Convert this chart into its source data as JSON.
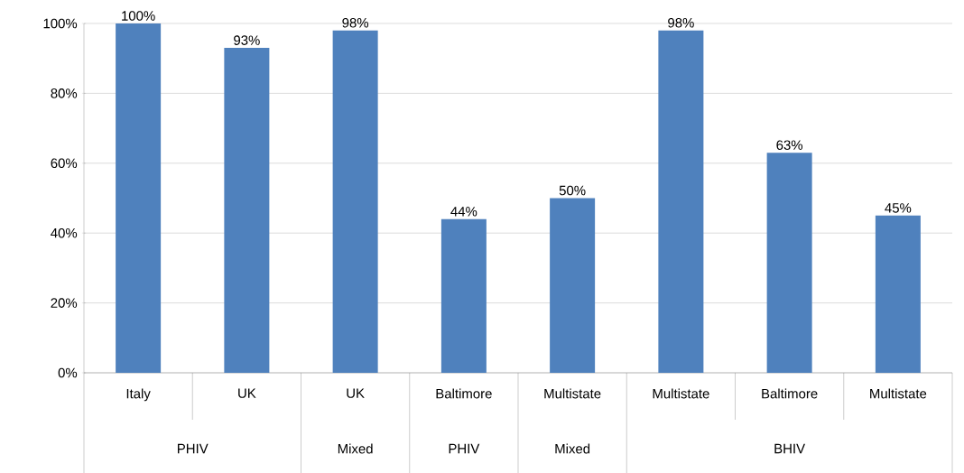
{
  "chart_data": {
    "type": "bar",
    "categories": [
      "Italy",
      "UK",
      "UK",
      "Baltimore",
      "Multistate",
      "Multistate",
      "Baltimore",
      "Multistate"
    ],
    "values": [
      100,
      93,
      98,
      44,
      50,
      98,
      63,
      45
    ],
    "value_labels": [
      "100%",
      "93%",
      "98%",
      "44%",
      "50%",
      "98%",
      "63%",
      "45%"
    ],
    "color": "#4f81bd",
    "ylim": [
      0,
      100
    ],
    "yticks": [
      {
        "value": 0,
        "label": "0%"
      },
      {
        "value": 20,
        "label": "20%"
      },
      {
        "value": 40,
        "label": "40%"
      },
      {
        "value": 60,
        "label": "60%"
      },
      {
        "value": 80,
        "label": "80%"
      },
      {
        "value": 100,
        "label": "100%"
      }
    ],
    "grid": "y",
    "annotations": [
      "PHIV",
      "Mixed",
      "PHIV",
      "Mixed",
      "BHIV"
    ]
  }
}
